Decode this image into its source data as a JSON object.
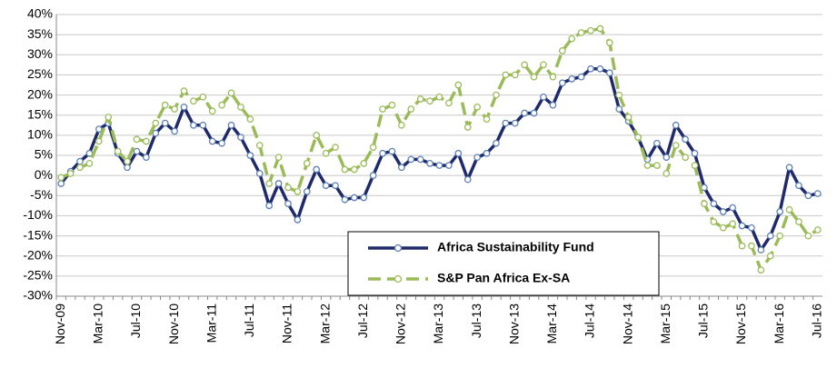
{
  "chart_data": {
    "type": "line",
    "categories": [
      "Nov-09",
      null,
      null,
      null,
      "Mar-10",
      null,
      null,
      null,
      "Jul-10",
      null,
      null,
      null,
      "Nov-10",
      null,
      null,
      null,
      "Mar-11",
      null,
      null,
      null,
      "Jul-11",
      null,
      null,
      null,
      "Nov-11",
      null,
      null,
      null,
      "Mar-12",
      null,
      null,
      null,
      "Jul-12",
      null,
      null,
      null,
      "Nov-12",
      null,
      null,
      null,
      "Mar-13",
      null,
      null,
      null,
      "Jul-13",
      null,
      null,
      null,
      "Nov-13",
      null,
      null,
      null,
      "Mar-14",
      null,
      null,
      null,
      "Jul-14",
      null,
      null,
      null,
      "Nov-14",
      null,
      null,
      null,
      "Mar-15",
      null,
      null,
      null,
      "Jul-15",
      null,
      null,
      null,
      "Nov-15",
      null,
      null,
      null,
      "Mar-16",
      null,
      null,
      null,
      "Jul-16"
    ],
    "series": [
      {
        "name": "Africa Sustainability Fund",
        "color": "#1f2a6b",
        "dashed": false,
        "values": [
          -2,
          1,
          3.5,
          5.5,
          11.5,
          13,
          5.5,
          2,
          6,
          4.5,
          10.5,
          13,
          11,
          17,
          12.5,
          12.5,
          8.5,
          8,
          12.5,
          9.5,
          5,
          0.5,
          -7.5,
          -2,
          -7,
          -11,
          -4,
          1.5,
          -2.5,
          -2.5,
          -6,
          -5.5,
          -5.5,
          0,
          5.5,
          6,
          2,
          4,
          4,
          3,
          2.5,
          2.5,
          5.5,
          -1,
          4.5,
          5.5,
          8,
          13,
          13,
          15.5,
          15.5,
          19.5,
          17.5,
          23,
          24,
          24.5,
          26.5,
          26.5,
          25.5,
          16.5,
          13.5,
          9.5,
          4,
          8,
          4.5,
          12.5,
          9,
          5.5,
          -3,
          -7,
          -9,
          -8,
          -12.5,
          -13,
          -18.5,
          -15,
          -9,
          2,
          -2.5,
          -5,
          -4.5
        ]
      },
      {
        "name": "S&P Pan Africa Ex-SA",
        "color": "#9bbb59",
        "dashed": true,
        "values": [
          -0.5,
          0.5,
          2,
          3,
          8.5,
          14.5,
          6,
          3.5,
          9,
          8.5,
          13,
          17.5,
          16.5,
          21,
          18.5,
          19.5,
          16,
          17.5,
          20.5,
          17,
          14,
          7.5,
          -2,
          4.5,
          -3,
          -4,
          3,
          10,
          5.5,
          7,
          1.5,
          1.5,
          3,
          7,
          16.5,
          17.5,
          12.5,
          16.5,
          19,
          18.5,
          19.5,
          18,
          22.5,
          12,
          17,
          14,
          20,
          25,
          25,
          27.5,
          24.5,
          27.5,
          24.5,
          31,
          34,
          35.5,
          36,
          36.5,
          33,
          20,
          14.5,
          9.5,
          2.5,
          2.5,
          0.5,
          7.5,
          4.5,
          2.5,
          -7,
          -11.5,
          -13,
          -12,
          -17.5,
          -17.5,
          -23.5,
          -20,
          -15,
          -8.5,
          -11.5,
          -15,
          -13.5
        ]
      }
    ],
    "ylim": [
      -30,
      40
    ],
    "yticks": [
      {
        "value": -30,
        "label": "-30%"
      },
      {
        "value": -25,
        "label": "-25%"
      },
      {
        "value": -20,
        "label": "-20%"
      },
      {
        "value": -15,
        "label": "-15%"
      },
      {
        "value": -10,
        "label": "-10%"
      },
      {
        "value": -5,
        "label": "-5%"
      },
      {
        "value": 0,
        "label": "0%"
      },
      {
        "value": 5,
        "label": "5%"
      },
      {
        "value": 10,
        "label": "10%"
      },
      {
        "value": 15,
        "label": "15%"
      },
      {
        "value": 20,
        "label": "20%"
      },
      {
        "value": 25,
        "label": "25%"
      },
      {
        "value": 30,
        "label": "30%"
      },
      {
        "value": 35,
        "label": "35%"
      },
      {
        "value": 40,
        "label": "40%"
      }
    ],
    "grid": true,
    "legend": "bottom-right"
  }
}
